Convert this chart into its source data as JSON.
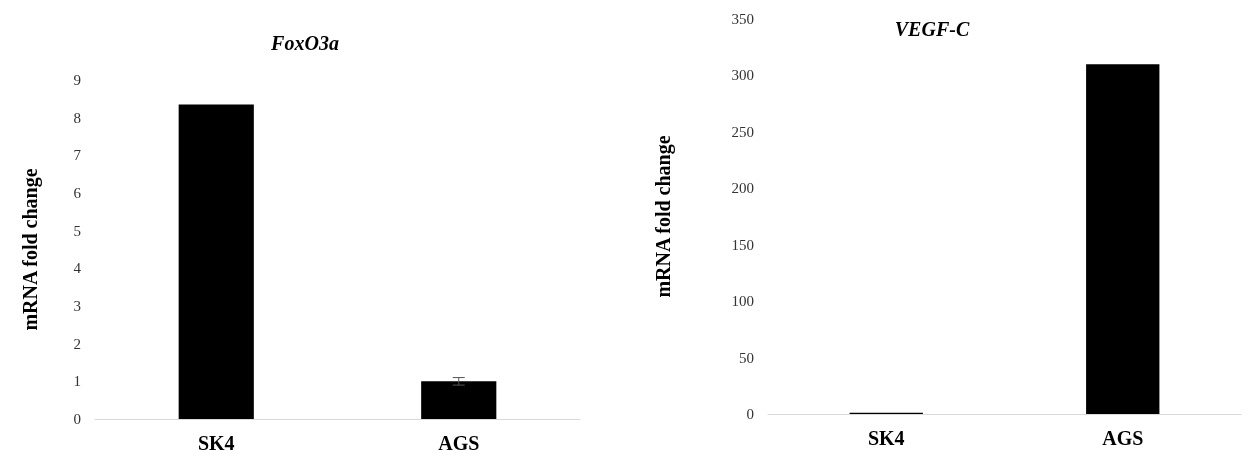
{
  "chart_data": [
    {
      "type": "bar",
      "title": "FoxO3a",
      "ylabel": "mRNA fold change",
      "categories": [
        "SK4",
        "AGS"
      ],
      "values": [
        8.35,
        1.0
      ],
      "errors": [
        null,
        0.1
      ],
      "color": "#000000",
      "ylim": [
        0,
        9
      ],
      "yticks": [
        0,
        1,
        2,
        3,
        4,
        5,
        6,
        7,
        8,
        9
      ],
      "grid": false
    },
    {
      "type": "bar",
      "title": "VEGF-C",
      "ylabel": "mRNA fold change",
      "categories": [
        "SK4",
        "AGS"
      ],
      "values": [
        1,
        310
      ],
      "color": "#000000",
      "ylim": [
        0,
        350
      ],
      "yticks": [
        0,
        50,
        100,
        150,
        200,
        250,
        300,
        350
      ],
      "grid": false
    }
  ]
}
